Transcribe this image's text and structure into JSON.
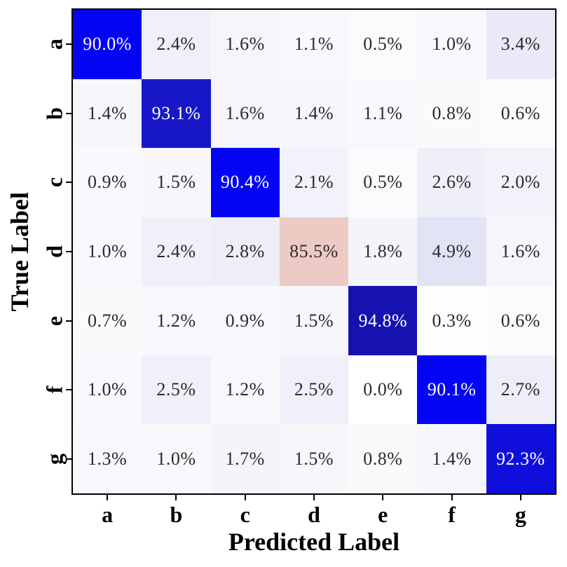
{
  "figure": {
    "background": "#ffffff",
    "frame_color": "#000000",
    "tick_color": "#000000",
    "label_color": "#000000"
  },
  "chart_data": {
    "type": "heatmap",
    "title": "",
    "xlabel": "Predicted Label",
    "ylabel": "True Label",
    "x_categories": [
      "a",
      "b",
      "c",
      "d",
      "e",
      "f",
      "g"
    ],
    "y_categories": [
      "a",
      "b",
      "c",
      "d",
      "e",
      "f",
      "g"
    ],
    "value_suffix": "%",
    "grid": "off",
    "legend": "none",
    "dark_text_color": "#2b2b2b",
    "light_text_color": "#ffffff",
    "values_percent": [
      [
        90.0,
        2.4,
        1.6,
        1.1,
        0.5,
        1.0,
        3.4
      ],
      [
        1.4,
        93.1,
        1.6,
        1.4,
        1.1,
        0.8,
        0.6
      ],
      [
        0.9,
        1.5,
        90.4,
        2.1,
        0.5,
        2.6,
        2.0
      ],
      [
        1.0,
        2.4,
        2.8,
        85.5,
        1.8,
        4.9,
        1.6
      ],
      [
        0.7,
        1.2,
        0.9,
        1.5,
        94.8,
        0.3,
        0.6
      ],
      [
        1.0,
        2.5,
        1.2,
        2.5,
        0.0,
        90.1,
        2.7
      ],
      [
        1.3,
        1.0,
        1.7,
        1.5,
        0.8,
        1.4,
        92.3
      ]
    ],
    "cell_colors": [
      [
        "#0404f4",
        "#f0f0fa",
        "#f5f5fb",
        "#f8f8fd",
        "#fbfbfe",
        "#f8f8fd",
        "#e9e9f8"
      ],
      [
        "#f6f6fc",
        "#1717c8",
        "#f5f5fb",
        "#f6f6fc",
        "#f8f8fd",
        "#fafafd",
        "#fbfbfe"
      ],
      [
        "#f9f9fd",
        "#f6f6fb",
        "#0404f4",
        "#f2f2fa",
        "#fbfbfe",
        "#efeff9",
        "#f2f2fa"
      ],
      [
        "#f8f8fd",
        "#f0f0fa",
        "#eeeef9",
        "#eecac5",
        "#f4f4fb",
        "#e3e3f6",
        "#f5f5fb"
      ],
      [
        "#fafafd",
        "#f7f7fc",
        "#f9f9fd",
        "#f6f6fb",
        "#1512af",
        "#fdfdfe",
        "#fbfbfe"
      ],
      [
        "#f8f8fd",
        "#f0f0fa",
        "#f7f7fc",
        "#f0f0fa",
        "#ffffff",
        "#0404f6",
        "#eeeef9"
      ],
      [
        "#f7f7fc",
        "#f8f8fd",
        "#f4f4fb",
        "#f6f6fb",
        "#fafafd",
        "#f6f6fc",
        "#100eda"
      ]
    ]
  }
}
